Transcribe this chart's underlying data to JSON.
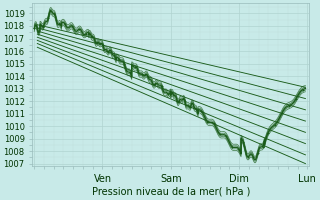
{
  "xlabel": "Pression niveau de la mer( hPa )",
  "bg_color": "#c8eae8",
  "grid_major_color": "#b0d4d0",
  "grid_minor_color": "#c0deda",
  "line_color": "#1a5c1a",
  "ylim": [
    1006.8,
    1019.8
  ],
  "yticks": [
    1007,
    1008,
    1009,
    1010,
    1011,
    1012,
    1013,
    1014,
    1015,
    1016,
    1017,
    1018,
    1019
  ],
  "xlim": [
    -0.05,
    7.05
  ],
  "xtick_positions": [
    0,
    1.75,
    3.5,
    5.25,
    7.0
  ],
  "xtick_labels": [
    "",
    "Ven",
    "Sam",
    "Dim",
    "Lun"
  ],
  "ensemble_starts_x": 0.08,
  "ensemble_starts_y": [
    1018.1,
    1017.85,
    1017.6,
    1017.35,
    1017.1,
    1016.85,
    1016.6,
    1016.3
  ],
  "ensemble_end_x": 6.95,
  "ensemble_ends_y": [
    1013.1,
    1012.2,
    1011.3,
    1010.4,
    1009.5,
    1008.6,
    1007.7,
    1007.0
  ],
  "obs_peak_x": 0.55,
  "obs_peak_y": 1019.2
}
